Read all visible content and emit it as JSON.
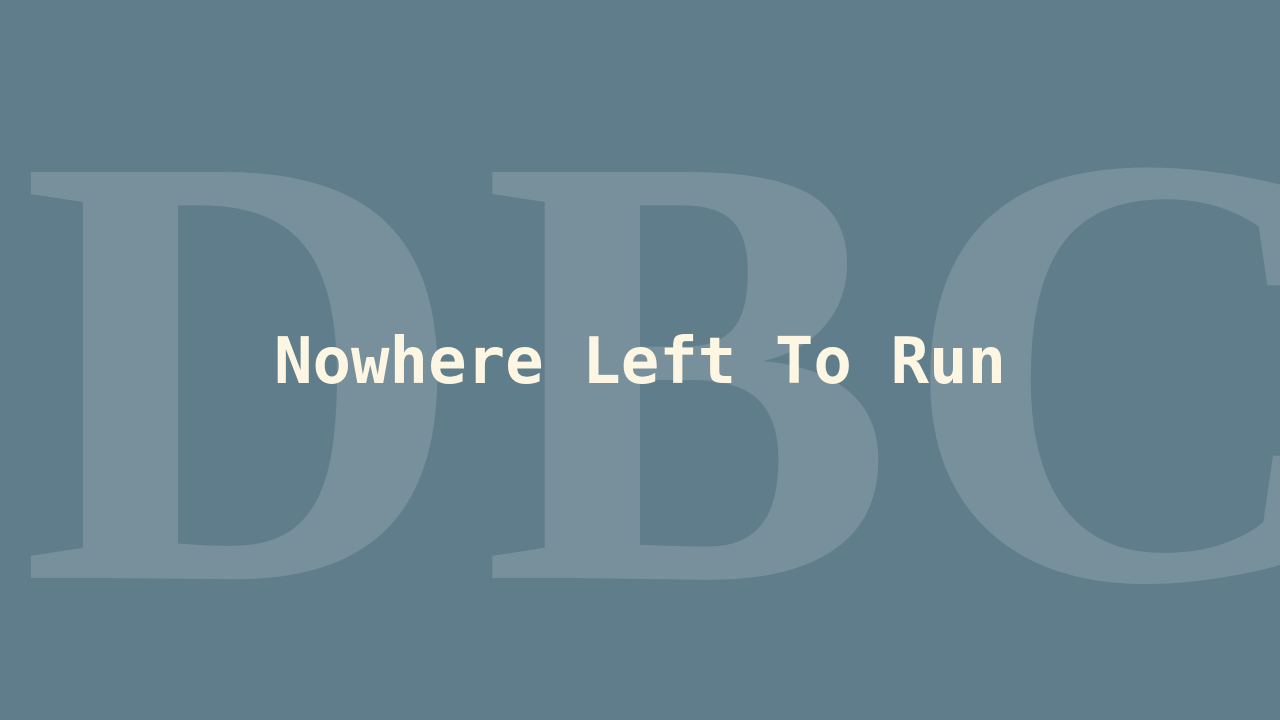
{
  "background_color": "#607d8b",
  "watermark": {
    "letters": [
      "D",
      "B",
      "C"
    ],
    "color": "#ffffff",
    "opacity": 0.15
  },
  "title": {
    "text": "Nowhere Left To Run",
    "color": "#fdf6e3"
  }
}
